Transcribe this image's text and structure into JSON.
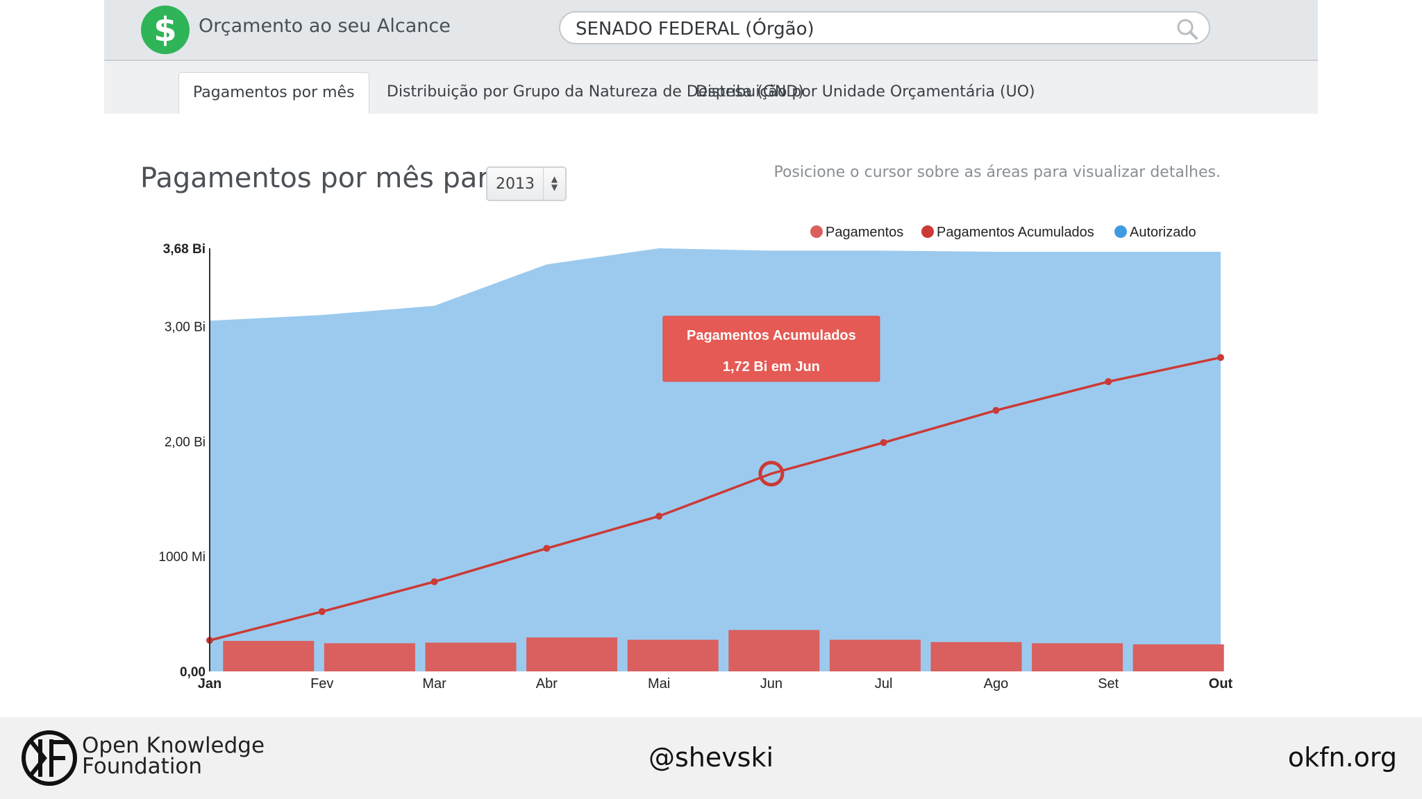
{
  "app": {
    "title": "Orçamento ao seu Alcance",
    "logo_symbol": "$",
    "search_value": "SENADO FEDERAL (Órgão)"
  },
  "tabs": [
    {
      "label": "Pagamentos por mês",
      "active": true
    },
    {
      "label": "Distribuição por Grupo da Natureza de Despesa (GND)",
      "active": false
    },
    {
      "label": "Distribuição por Unidade Orçamentária (UO)",
      "active": false
    }
  ],
  "heading": {
    "title": "Pagamentos por mês para",
    "year": "2013",
    "hint": "Posicione o cursor sobre as áreas para visualizar detalhes."
  },
  "tooltip": {
    "title": "Pagamentos Acumulados",
    "text": "1,72 Bi em Jun"
  },
  "footer": {
    "org_line1": "Open Knowledge",
    "org_line2": "Foundation",
    "handle": "@shevski",
    "site": "okfn.org"
  },
  "colors": {
    "pagamentos": "#d9605e",
    "acumulados": "#cb3a35",
    "autorizado": "#9ccaee",
    "autorizado_legend": "#3f9be0"
  },
  "chart_data": {
    "type": "area",
    "categories": [
      "Jan",
      "Fev",
      "Mar",
      "Abr",
      "Mai",
      "Jun",
      "Jul",
      "Ago",
      "Set",
      "Out"
    ],
    "y_ticks": [
      {
        "value": 0,
        "label": "0,00"
      },
      {
        "value": 1000,
        "label": "1000 Mi"
      },
      {
        "value": 2000,
        "label": "2,00 Bi"
      },
      {
        "value": 3000,
        "label": "3,00 Bi"
      },
      {
        "value": 3680,
        "label": "3,68 Bi"
      }
    ],
    "ylim": [
      0,
      3680
    ],
    "y_unit": "Mi",
    "legend": [
      "Pagamentos",
      "Pagamentos Acumulados",
      "Autorizado"
    ],
    "legend_position": "top-right",
    "series": [
      {
        "name": "Autorizado",
        "kind": "area",
        "values": [
          3050,
          3100,
          3180,
          3540,
          3680,
          3660,
          3660,
          3650,
          3650,
          3650
        ]
      },
      {
        "name": "Pagamentos Acumulados",
        "kind": "line",
        "values": [
          270,
          520,
          780,
          1070,
          1350,
          1720,
          1990,
          2270,
          2520,
          2730
        ]
      },
      {
        "name": "Pagamentos",
        "kind": "bar",
        "values": [
          265,
          245,
          250,
          295,
          275,
          360,
          275,
          255,
          245,
          235
        ]
      }
    ],
    "highlight": {
      "series": "Pagamentos Acumulados",
      "category": "Jun"
    }
  }
}
